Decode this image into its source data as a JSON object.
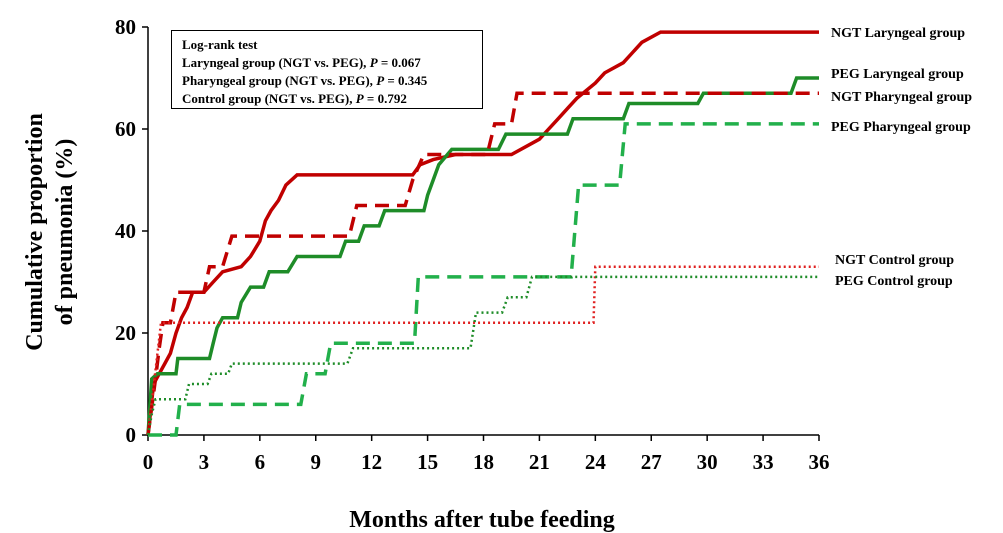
{
  "chart_data": {
    "type": "line",
    "title": "",
    "xlabel": "Months after  tube feeding",
    "ylabel_lines": [
      "Cumulative proportion",
      "of pneumonia  (%)"
    ],
    "xlim": [
      0,
      36
    ],
    "ylim": [
      0,
      80
    ],
    "xticks": [
      "0",
      "3",
      "6",
      "9",
      "12",
      "15",
      "18",
      "21",
      "24",
      "27",
      "30",
      "33",
      "36"
    ],
    "yticks": [
      "0",
      "20",
      "40",
      "60",
      "80"
    ],
    "grid": false,
    "annotation": {
      "title": "Log-rank test",
      "rows": [
        {
          "text": "Laryngeal group (NGT vs. PEG), ",
          "p": "P",
          "value": " = 0.067"
        },
        {
          "text": "Pharyngeal group (NGT vs. PEG), ",
          "p": "P",
          "value": " = 0.345"
        },
        {
          "text": "Control group (NGT vs. PEG), ",
          "p": "P",
          "value": " = 0.792"
        }
      ]
    },
    "series": [
      {
        "name": "NGT Laryngeal group",
        "color": "#c00000",
        "style": "solid",
        "points": [
          [
            0,
            0
          ],
          [
            0.3,
            10
          ],
          [
            0.6,
            12
          ],
          [
            0.9,
            14
          ],
          [
            1.2,
            16
          ],
          [
            1.5,
            20
          ],
          [
            1.8,
            23
          ],
          [
            2.1,
            25
          ],
          [
            2.4,
            28
          ],
          [
            3,
            28
          ],
          [
            3.5,
            30
          ],
          [
            4,
            32
          ],
          [
            5,
            33
          ],
          [
            5.5,
            35
          ],
          [
            6,
            38
          ],
          [
            6.3,
            42
          ],
          [
            6.6,
            44
          ],
          [
            7,
            46
          ],
          [
            7.4,
            49
          ],
          [
            8,
            51
          ],
          [
            14.2,
            51
          ],
          [
            14.6,
            53
          ],
          [
            15.3,
            54
          ],
          [
            16.5,
            55
          ],
          [
            19.5,
            55
          ],
          [
            20.5,
            57
          ],
          [
            21,
            58
          ],
          [
            21.5,
            60
          ],
          [
            22,
            62
          ],
          [
            22.5,
            64
          ],
          [
            23,
            66
          ],
          [
            24,
            69
          ],
          [
            24.5,
            71
          ],
          [
            25.5,
            73
          ],
          [
            26,
            75
          ],
          [
            26.5,
            77
          ],
          [
            27.5,
            79
          ],
          [
            36,
            79
          ]
        ]
      },
      {
        "name": "PEG Laryngeal group",
        "color": "#1e8c28",
        "style": "solid",
        "points": [
          [
            0,
            0
          ],
          [
            0.2,
            11
          ],
          [
            0.5,
            12
          ],
          [
            1.5,
            12
          ],
          [
            1.6,
            15
          ],
          [
            3.3,
            15
          ],
          [
            3.5,
            18
          ],
          [
            3.7,
            21
          ],
          [
            4,
            23
          ],
          [
            4.8,
            23
          ],
          [
            5,
            26
          ],
          [
            5.5,
            29
          ],
          [
            6.2,
            29
          ],
          [
            6.5,
            32
          ],
          [
            7.5,
            32
          ],
          [
            8,
            35
          ],
          [
            10.3,
            35
          ],
          [
            10.6,
            38
          ],
          [
            11.3,
            38
          ],
          [
            11.6,
            41
          ],
          [
            12.4,
            41
          ],
          [
            12.7,
            44
          ],
          [
            14.8,
            44
          ],
          [
            15,
            47
          ],
          [
            15.3,
            50
          ],
          [
            15.6,
            53
          ],
          [
            16.3,
            56
          ],
          [
            18.8,
            56
          ],
          [
            19.2,
            59
          ],
          [
            22.5,
            59
          ],
          [
            22.8,
            62
          ],
          [
            25.5,
            62
          ],
          [
            25.8,
            65
          ],
          [
            29.5,
            65
          ],
          [
            29.8,
            67
          ],
          [
            34.5,
            67
          ],
          [
            34.8,
            70
          ],
          [
            36,
            70
          ]
        ]
      },
      {
        "name": "NGT Pharyngeal group",
        "color": "#c00000",
        "style": "dashed",
        "points": [
          [
            0,
            0
          ],
          [
            0.4,
            11
          ],
          [
            0.6,
            17
          ],
          [
            0.8,
            22
          ],
          [
            1.2,
            22
          ],
          [
            1.5,
            28
          ],
          [
            3,
            28
          ],
          [
            3.3,
            33
          ],
          [
            4,
            33
          ],
          [
            4.5,
            39
          ],
          [
            10.8,
            39
          ],
          [
            11.2,
            45
          ],
          [
            13.8,
            45
          ],
          [
            14.2,
            50
          ],
          [
            14.8,
            55
          ],
          [
            18.2,
            55
          ],
          [
            18.6,
            61
          ],
          [
            19.5,
            61
          ],
          [
            19.8,
            67
          ],
          [
            36,
            67
          ]
        ]
      },
      {
        "name": "PEG Pharyngeal group",
        "color": "#22b04b",
        "style": "dashed",
        "points": [
          [
            0,
            0
          ],
          [
            1.5,
            0
          ],
          [
            1.7,
            6
          ],
          [
            8.2,
            6
          ],
          [
            8.5,
            12
          ],
          [
            9.5,
            12
          ],
          [
            9.8,
            18
          ],
          [
            14.3,
            18
          ],
          [
            14.5,
            31
          ],
          [
            22.7,
            31
          ],
          [
            23.1,
            49
          ],
          [
            25.3,
            49
          ],
          [
            25.6,
            61
          ],
          [
            36,
            61
          ]
        ]
      },
      {
        "name": "NGT Control group",
        "color": "#e02020",
        "style": "dotted",
        "points": [
          [
            0,
            0
          ],
          [
            0.7,
            22
          ],
          [
            23.9,
            22
          ],
          [
            24,
            33
          ],
          [
            36,
            33
          ]
        ]
      },
      {
        "name": "PEG Control group",
        "color": "#1e8c28",
        "style": "dotted",
        "points": [
          [
            0,
            0
          ],
          [
            0.2,
            4
          ],
          [
            0.4,
            7
          ],
          [
            2,
            7
          ],
          [
            2.2,
            10
          ],
          [
            3.2,
            10
          ],
          [
            3.4,
            12
          ],
          [
            4.3,
            12
          ],
          [
            4.5,
            14
          ],
          [
            10.7,
            14
          ],
          [
            11,
            17
          ],
          [
            17.3,
            17
          ],
          [
            17.6,
            24
          ],
          [
            19,
            24
          ],
          [
            19.3,
            27
          ],
          [
            20.3,
            27
          ],
          [
            20.6,
            31
          ],
          [
            36,
            31
          ]
        ]
      }
    ]
  }
}
